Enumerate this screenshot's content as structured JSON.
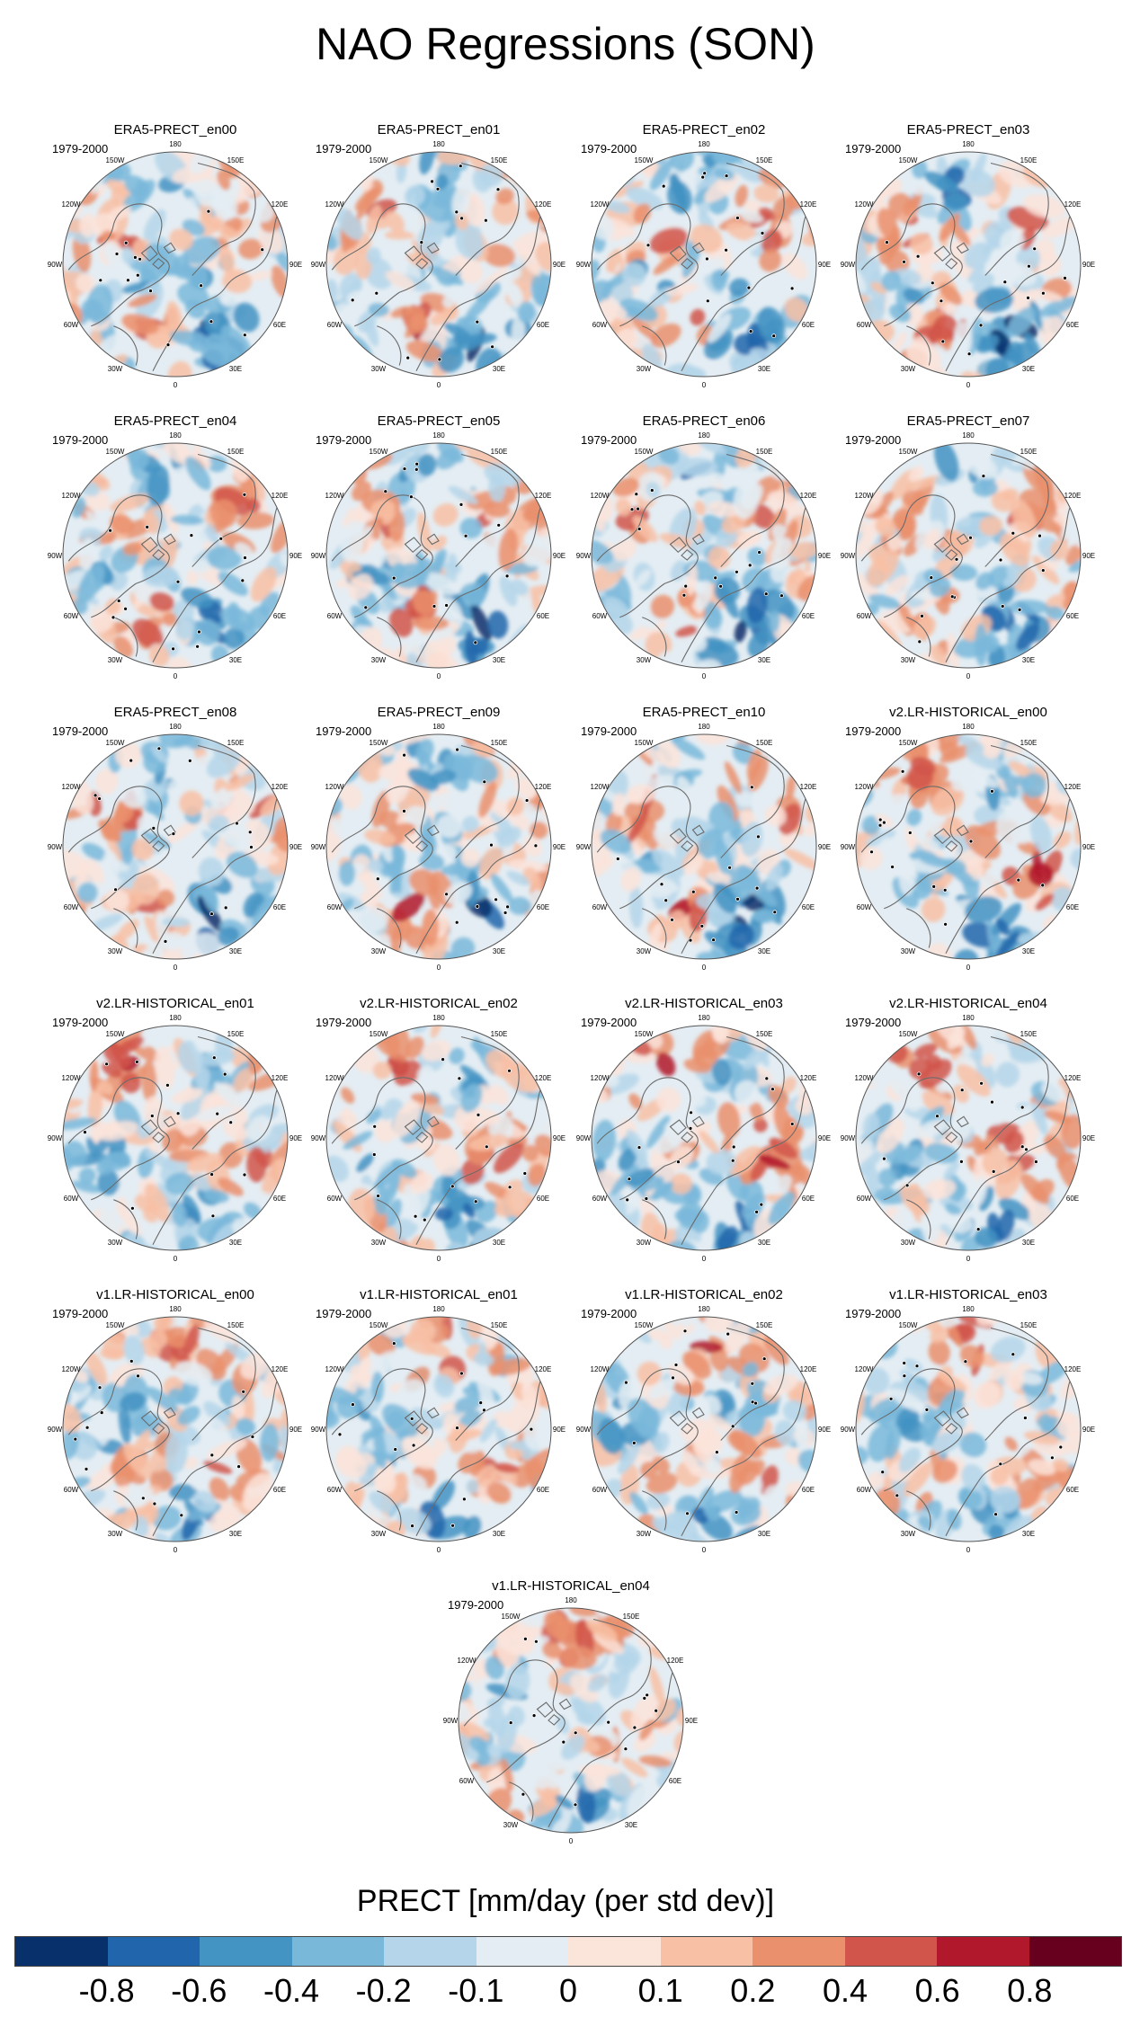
{
  "title": "NAO Regressions (SON)",
  "period_label": "1979-2000",
  "panels": [
    {
      "title": "ERA5-PRECT_en00",
      "family": "ERA5"
    },
    {
      "title": "ERA5-PRECT_en01",
      "family": "ERA5"
    },
    {
      "title": "ERA5-PRECT_en02",
      "family": "ERA5"
    },
    {
      "title": "ERA5-PRECT_en03",
      "family": "ERA5"
    },
    {
      "title": "ERA5-PRECT_en04",
      "family": "ERA5"
    },
    {
      "title": "ERA5-PRECT_en05",
      "family": "ERA5"
    },
    {
      "title": "ERA5-PRECT_en06",
      "family": "ERA5"
    },
    {
      "title": "ERA5-PRECT_en07",
      "family": "ERA5"
    },
    {
      "title": "ERA5-PRECT_en08",
      "family": "ERA5"
    },
    {
      "title": "ERA5-PRECT_en09",
      "family": "ERA5"
    },
    {
      "title": "ERA5-PRECT_en10",
      "family": "ERA5"
    },
    {
      "title": "v2.LR-HISTORICAL_en00",
      "family": "v2"
    },
    {
      "title": "v2.LR-HISTORICAL_en01",
      "family": "v2"
    },
    {
      "title": "v2.LR-HISTORICAL_en02",
      "family": "v2"
    },
    {
      "title": "v2.LR-HISTORICAL_en03",
      "family": "v2"
    },
    {
      "title": "v2.LR-HISTORICAL_en04",
      "family": "v2"
    },
    {
      "title": "v1.LR-HISTORICAL_en00",
      "family": "v1"
    },
    {
      "title": "v1.LR-HISTORICAL_en01",
      "family": "v1"
    },
    {
      "title": "v1.LR-HISTORICAL_en02",
      "family": "v1"
    },
    {
      "title": "v1.LR-HISTORICAL_en03",
      "family": "v1"
    },
    {
      "title": "v1.LR-HISTORICAL_en04",
      "family": "v1"
    }
  ],
  "lon_labels": [
    "180",
    "150E",
    "120E",
    "90E",
    "60E",
    "30E",
    "0",
    "30W",
    "60W",
    "90W",
    "120W",
    "150W"
  ],
  "chart_data": {
    "type": "heatmap",
    "projection": "north polar stereographic",
    "colorbar_title": "PRECT [mm/day (per std dev)]",
    "levels": [
      "-0.8",
      "-0.6",
      "-0.4",
      "-0.2",
      "-0.1",
      "0",
      "0.1",
      "0.2",
      "0.4",
      "0.6",
      "0.8"
    ],
    "colors": [
      "#08306b",
      "#2166ac",
      "#4393c3",
      "#7ab8da",
      "#b5d6ea",
      "#e4edf3",
      "#fbe4da",
      "#f8c1a6",
      "#ea906d",
      "#d1554a",
      "#b2182b",
      "#67001f"
    ],
    "significance_marker": "stippling"
  }
}
